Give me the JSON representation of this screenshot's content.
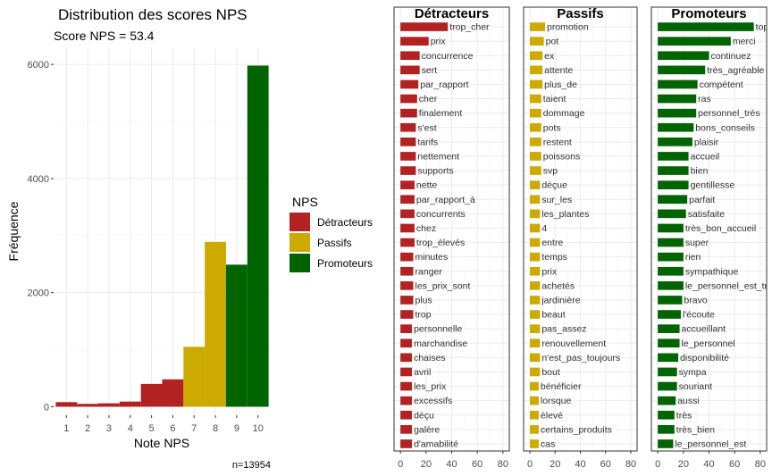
{
  "colors": {
    "detracteurs": "#b22222",
    "passifs": "#ccaa00",
    "promoteurs": "#006400"
  },
  "legend": {
    "title": "NPS",
    "items": [
      {
        "label": "Détracteurs",
        "color": "#b22222"
      },
      {
        "label": "Passifs",
        "color": "#ccaa00"
      },
      {
        "label": "Promoteurs",
        "color": "#006400"
      }
    ]
  },
  "chart_data": [
    {
      "type": "bar",
      "title": "Distribution des scores NPS",
      "subtitle": "Score NPS = 53.4",
      "xlabel": "Note NPS",
      "ylabel": "Fréquence",
      "caption": "n=13954",
      "categories": [
        "1",
        "2",
        "3",
        "4",
        "5",
        "6",
        "7",
        "8",
        "9",
        "10"
      ],
      "values": [
        80,
        50,
        60,
        90,
        400,
        480,
        1050,
        2890,
        2490,
        5980
      ],
      "groups": [
        "Détracteurs",
        "Détracteurs",
        "Détracteurs",
        "Détracteurs",
        "Détracteurs",
        "Détracteurs",
        "Passifs",
        "Passifs",
        "Promoteurs",
        "Promoteurs"
      ],
      "ylim": [
        -150,
        6300
      ],
      "yticks": [
        0,
        2000,
        4000,
        6000
      ],
      "grid": true
    },
    {
      "type": "bar",
      "orientation": "horizontal",
      "title": "Détracteurs",
      "xlim": [
        -5,
        85
      ],
      "xticks": [
        0,
        20,
        40,
        60,
        80
      ],
      "categories": [
        "trop_cher",
        "prix",
        "concurrence",
        "sert",
        "par_rapport",
        "cher",
        "finalement",
        "s'est",
        "tarifs",
        "nettement",
        "supports",
        "nette",
        "par_rapport_à",
        "concurrents",
        "chez",
        "trop_élevés",
        "minutes",
        "ranger",
        "les_prix_sont",
        "plus",
        "trop",
        "personnelle",
        "marchandise",
        "chaises",
        "avril",
        "les_prix",
        "excessifs",
        "déçu",
        "galère",
        "d'amabilité"
      ],
      "values": [
        37,
        22,
        15,
        15,
        14,
        13,
        13,
        12,
        12,
        12,
        12,
        11,
        11,
        11,
        11,
        11,
        10,
        10,
        10,
        10,
        10,
        9,
        9,
        9,
        9,
        9,
        9,
        9,
        9,
        9
      ]
    },
    {
      "type": "bar",
      "orientation": "horizontal",
      "title": "Passifs",
      "xlim": [
        -5,
        85
      ],
      "xticks": [
        0,
        20,
        40,
        60,
        80
      ],
      "categories": [
        "promotion",
        "pot",
        "ex",
        "attente",
        "plus_de",
        "taient",
        "dommage",
        "pots",
        "restent",
        "poissons",
        "svp",
        "déçue",
        "sur_les",
        "les_plantes",
        "4",
        "entre",
        "temps",
        "prix",
        "achetés",
        "jardinière",
        "beaut",
        "pas_assez",
        "renouvellement",
        "n'est_pas_toujours",
        "bout",
        "bénéficier",
        "lorsque",
        "élevé",
        "certains_produits",
        "cas"
      ],
      "values": [
        12,
        11,
        10,
        10,
        10,
        9,
        9,
        9,
        9,
        9,
        9,
        8,
        8,
        8,
        8,
        8,
        8,
        8,
        8,
        8,
        8,
        8,
        8,
        8,
        8,
        7,
        7,
        7,
        7,
        7
      ]
    },
    {
      "type": "bar",
      "orientation": "horizontal",
      "title": "Promoteurs",
      "xlim": [
        -5,
        85
      ],
      "xticks": [
        0,
        20,
        40,
        60,
        80
      ],
      "categories": [
        "top",
        "merci",
        "continuez",
        "très_agréable",
        "compétent",
        "ras",
        "personnel_très",
        "bons_conseils",
        "plaisir",
        "accueil",
        "bien",
        "gentillesse",
        "parfait",
        "satisfaite",
        "très_bon_accueil",
        "super",
        "rien",
        "sympathique",
        "le_personnel_est_très",
        "bravo",
        "l'écoute",
        "accueillant",
        "le_personnel",
        "disponibilité",
        "sympa",
        "souriant",
        "aussi",
        "très",
        "très_bien",
        "le_personnel_est"
      ],
      "values": [
        75,
        57,
        40,
        37,
        31,
        30,
        30,
        28,
        27,
        24,
        24,
        24,
        23,
        22,
        20,
        20,
        20,
        20,
        20,
        19,
        18,
        17,
        17,
        16,
        15,
        15,
        14,
        13,
        13,
        12
      ]
    }
  ]
}
